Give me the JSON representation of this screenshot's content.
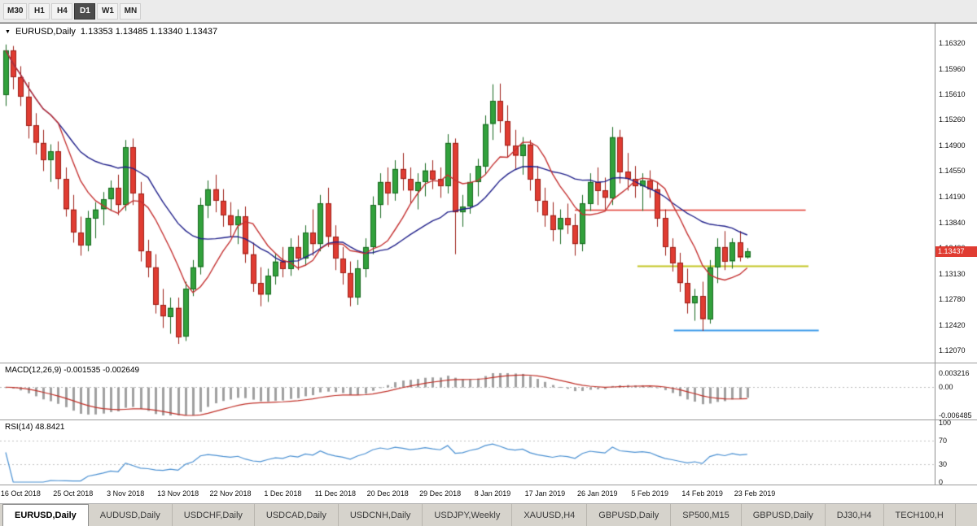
{
  "colors": {
    "bull": "#32a13c",
    "bull_border": "#17691f",
    "bear": "#e03c32",
    "bear_border": "#9c1f17",
    "ma_fast": "#c43131",
    "ma_slow": "#20208a",
    "level_red": "#e03c32",
    "level_yellow": "#c3c623",
    "level_blue": "#3d9be9",
    "macd_hist": "#a0a0a0",
    "macd_signal": "#c03028",
    "rsi_line": "#4a90d2",
    "badge_bg": "#e03c32"
  },
  "icons": {
    "symbol_dropdown": "▼"
  },
  "toolbar": {
    "timeframes": [
      {
        "label": "M30",
        "active": false
      },
      {
        "label": "H1",
        "active": false
      },
      {
        "label": "H4",
        "active": false
      },
      {
        "label": "D1",
        "active": true
      },
      {
        "label": "W1",
        "active": false
      },
      {
        "label": "MN",
        "active": false
      }
    ]
  },
  "legend": {
    "symbol": "EURUSD,Daily",
    "ohlc": "1.13353 1.13485 1.13340 1.13437"
  },
  "price_badge": "1.13437",
  "price_scale": [
    "1.16320",
    "1.15960",
    "1.15610",
    "1.15260",
    "1.14900",
    "1.14550",
    "1.14190",
    "1.13840",
    "1.13490",
    "1.13130",
    "1.12780",
    "1.12420",
    "1.12070"
  ],
  "macd": {
    "label": "MACD(12,26,9) -0.001535 -0.002649",
    "scale": [
      {
        "label": "0.003216",
        "v": 0.003216
      },
      {
        "label": "0.00",
        "v": 0
      },
      {
        "label": "-0.006485",
        "v": -0.006485
      }
    ]
  },
  "rsi": {
    "label": "RSI(14) 48.8421",
    "scale": [
      {
        "label": "100",
        "v": 100
      },
      {
        "label": "70",
        "v": 70
      },
      {
        "label": "30",
        "v": 30
      },
      {
        "label": "0",
        "v": 0
      }
    ]
  },
  "tabs": [
    {
      "label": "EURUSD,Daily",
      "active": true
    },
    {
      "label": "AUDUSD,Daily",
      "active": false
    },
    {
      "label": "USDCHF,Daily",
      "active": false
    },
    {
      "label": "USDCAD,Daily",
      "active": false
    },
    {
      "label": "USDCNH,Daily",
      "active": false
    },
    {
      "label": "USDJPY,Weekly",
      "active": false
    },
    {
      "label": "XAUUSD,H4",
      "active": false
    },
    {
      "label": "GBPUSD,Daily",
      "active": false
    },
    {
      "label": "SP500,M15",
      "active": false
    },
    {
      "label": "GBPUSD,Daily",
      "active": false
    },
    {
      "label": "DJ30,H4",
      "active": false
    },
    {
      "label": "TECH100,H",
      "active": false
    }
  ],
  "chart_data": {
    "type": "candlestick",
    "symbol": "EURUSD",
    "timeframe": "Daily",
    "last_ohlc": [
      1.13353,
      1.13485,
      1.1334,
      1.13437
    ],
    "badge_price": 1.13437,
    "price_max": 1.1632,
    "price_min": 1.1207,
    "price_ticks": [
      1.1632,
      1.1596,
      1.1561,
      1.1526,
      1.149,
      1.1455,
      1.1419,
      1.1384,
      1.1349,
      1.1313,
      1.1278,
      1.1242,
      1.1207
    ],
    "x_axis": [
      {
        "label": "16 Oct 2018",
        "slot": 2
      },
      {
        "label": "25 Oct 2018",
        "slot": 9
      },
      {
        "label": "3 Nov 2018",
        "slot": 16
      },
      {
        "label": "13 Nov 2018",
        "slot": 23
      },
      {
        "label": "22 Nov 2018",
        "slot": 30
      },
      {
        "label": "1 Dec 2018",
        "slot": 37
      },
      {
        "label": "11 Dec 2018",
        "slot": 44
      },
      {
        "label": "20 Dec 2018",
        "slot": 51
      },
      {
        "label": "29 Dec 2018",
        "slot": 58
      },
      {
        "label": "8 Jan 2019",
        "slot": 65
      },
      {
        "label": "17 Jan 2019",
        "slot": 72
      },
      {
        "label": "26 Jan 2019",
        "slot": 79
      },
      {
        "label": "5 Feb 2019",
        "slot": 86
      },
      {
        "label": "14 Feb 2019",
        "slot": 93
      },
      {
        "label": "23 Feb 2019",
        "slot": 100
      }
    ],
    "ma_fast_period": 8,
    "ma_slow_period": 20,
    "levels": [
      {
        "name": "resistance-red-line",
        "price": 1.1401,
        "color": "level_red",
        "x1": 0.615,
        "x2": 0.862,
        "width": 1.5
      },
      {
        "name": "support-yellow-line",
        "price": 1.1324,
        "color": "level_yellow",
        "x1": 0.682,
        "x2": 0.865,
        "width": 2
      },
      {
        "name": "support-blue-line",
        "price": 1.1235,
        "color": "level_blue",
        "x1": 0.721,
        "x2": 0.876,
        "width": 2
      }
    ],
    "indicators": {
      "macd": {
        "params": [
          12,
          26,
          9
        ],
        "macd_value": -0.001535,
        "signal_value": -0.002649,
        "range": [
          -0.006485,
          0.003216
        ]
      },
      "rsi": {
        "period": 14,
        "value": 48.8421,
        "guides": [
          70,
          30
        ],
        "range": [
          0,
          100
        ]
      }
    },
    "candles": [
      [
        1.156,
        1.163,
        1.1545,
        1.1622
      ],
      [
        1.1622,
        1.1628,
        1.1568,
        1.1585
      ],
      [
        1.1585,
        1.16,
        1.1545,
        1.1558
      ],
      [
        1.1558,
        1.1578,
        1.15,
        1.1518
      ],
      [
        1.1518,
        1.1535,
        1.1478,
        1.1494
      ],
      [
        1.1494,
        1.1512,
        1.1455,
        1.147
      ],
      [
        1.147,
        1.1492,
        1.144,
        1.1482
      ],
      [
        1.1482,
        1.1496,
        1.143,
        1.1444
      ],
      [
        1.1444,
        1.146,
        1.1392,
        1.1402
      ],
      [
        1.1402,
        1.1422,
        1.1356,
        1.137
      ],
      [
        1.137,
        1.1392,
        1.1338,
        1.1352
      ],
      [
        1.1352,
        1.14,
        1.1344,
        1.139
      ],
      [
        1.139,
        1.1412,
        1.1362,
        1.1402
      ],
      [
        1.1402,
        1.1426,
        1.138,
        1.1416
      ],
      [
        1.1416,
        1.1442,
        1.14,
        1.1432
      ],
      [
        1.1432,
        1.145,
        1.1394,
        1.1408
      ],
      [
        1.1408,
        1.1498,
        1.14,
        1.1488
      ],
      [
        1.1488,
        1.15,
        1.1408,
        1.1424
      ],
      [
        1.1424,
        1.144,
        1.133,
        1.1344
      ],
      [
        1.1344,
        1.136,
        1.1308,
        1.1322
      ],
      [
        1.1322,
        1.134,
        1.1258,
        1.127
      ],
      [
        1.127,
        1.1292,
        1.1238,
        1.1254
      ],
      [
        1.1254,
        1.128,
        1.123,
        1.1266
      ],
      [
        1.1266,
        1.128,
        1.1216,
        1.1226
      ],
      [
        1.1226,
        1.1302,
        1.122,
        1.1292
      ],
      [
        1.1292,
        1.1332,
        1.1282,
        1.1322
      ],
      [
        1.1322,
        1.1418,
        1.1312,
        1.1408
      ],
      [
        1.1408,
        1.1442,
        1.139,
        1.143
      ],
      [
        1.143,
        1.145,
        1.1398,
        1.1414
      ],
      [
        1.1414,
        1.143,
        1.1378,
        1.1394
      ],
      [
        1.1394,
        1.1412,
        1.1364,
        1.138
      ],
      [
        1.138,
        1.1402,
        1.1354,
        1.1392
      ],
      [
        1.1392,
        1.1406,
        1.1328,
        1.134
      ],
      [
        1.134,
        1.1356,
        1.1288,
        1.13
      ],
      [
        1.13,
        1.1322,
        1.1268,
        1.1284
      ],
      [
        1.1284,
        1.132,
        1.1274,
        1.131
      ],
      [
        1.131,
        1.1342,
        1.1298,
        1.133
      ],
      [
        1.133,
        1.135,
        1.1308,
        1.132
      ],
      [
        1.132,
        1.1362,
        1.131,
        1.135
      ],
      [
        1.135,
        1.1366,
        1.1318,
        1.1334
      ],
      [
        1.1334,
        1.138,
        1.1324,
        1.137
      ],
      [
        1.137,
        1.1402,
        1.1338,
        1.1354
      ],
      [
        1.1354,
        1.1422,
        1.1344,
        1.141
      ],
      [
        1.141,
        1.1432,
        1.135,
        1.1364
      ],
      [
        1.1364,
        1.138,
        1.1318,
        1.1334
      ],
      [
        1.1334,
        1.135,
        1.1298,
        1.1314
      ],
      [
        1.1314,
        1.133,
        1.1268,
        1.128
      ],
      [
        1.128,
        1.1332,
        1.127,
        1.132
      ],
      [
        1.132,
        1.1362,
        1.1308,
        1.135
      ],
      [
        1.135,
        1.142,
        1.134,
        1.1408
      ],
      [
        1.1408,
        1.1452,
        1.139,
        1.144
      ],
      [
        1.144,
        1.146,
        1.1408,
        1.1424
      ],
      [
        1.1424,
        1.147,
        1.1414,
        1.1458
      ],
      [
        1.1458,
        1.148,
        1.1428,
        1.1444
      ],
      [
        1.1444,
        1.146,
        1.141,
        1.1428
      ],
      [
        1.1428,
        1.1452,
        1.1402,
        1.144
      ],
      [
        1.144,
        1.1466,
        1.142,
        1.1456
      ],
      [
        1.1456,
        1.147,
        1.143,
        1.1444
      ],
      [
        1.1444,
        1.146,
        1.1418,
        1.1434
      ],
      [
        1.1434,
        1.1506,
        1.1424,
        1.1494
      ],
      [
        1.1494,
        1.15,
        1.134,
        1.1398
      ],
      [
        1.1398,
        1.1422,
        1.1378,
        1.1406
      ],
      [
        1.1406,
        1.1452,
        1.1396,
        1.144
      ],
      [
        1.144,
        1.1472,
        1.142,
        1.1462
      ],
      [
        1.1462,
        1.1532,
        1.145,
        1.152
      ],
      [
        1.152,
        1.1575,
        1.1498,
        1.1552
      ],
      [
        1.1552,
        1.1576,
        1.1508,
        1.1524
      ],
      [
        1.1524,
        1.1546,
        1.1474,
        1.149
      ],
      [
        1.149,
        1.1512,
        1.1458,
        1.1476
      ],
      [
        1.1476,
        1.1502,
        1.145,
        1.1492
      ],
      [
        1.1492,
        1.1498,
        1.1428,
        1.1444
      ],
      [
        1.1444,
        1.1462,
        1.1398,
        1.1414
      ],
      [
        1.1414,
        1.1432,
        1.1378,
        1.1394
      ],
      [
        1.1394,
        1.1412,
        1.1358,
        1.1374
      ],
      [
        1.1374,
        1.1402,
        1.1354,
        1.139
      ],
      [
        1.139,
        1.141,
        1.1368,
        1.138
      ],
      [
        1.138,
        1.1396,
        1.1338,
        1.1354
      ],
      [
        1.1354,
        1.1422,
        1.1344,
        1.141
      ],
      [
        1.141,
        1.1452,
        1.14,
        1.144
      ],
      [
        1.144,
        1.146,
        1.1408,
        1.1428
      ],
      [
        1.1428,
        1.1446,
        1.1402,
        1.1418
      ],
      [
        1.1418,
        1.1516,
        1.1408,
        1.1502
      ],
      [
        1.1502,
        1.1512,
        1.1438,
        1.1454
      ],
      [
        1.1454,
        1.148,
        1.1428,
        1.1444
      ],
      [
        1.1444,
        1.1462,
        1.1418,
        1.1434
      ],
      [
        1.1434,
        1.1452,
        1.14,
        1.1442
      ],
      [
        1.1442,
        1.1456,
        1.1418,
        1.143
      ],
      [
        1.143,
        1.144,
        1.1378,
        1.139
      ],
      [
        1.139,
        1.1402,
        1.1338,
        1.135
      ],
      [
        1.135,
        1.1362,
        1.1316,
        1.1328
      ],
      [
        1.1328,
        1.1342,
        1.1288,
        1.13
      ],
      [
        1.13,
        1.132,
        1.1258,
        1.1272
      ],
      [
        1.1272,
        1.1292,
        1.1248,
        1.1282
      ],
      [
        1.1282,
        1.1302,
        1.1234,
        1.125
      ],
      [
        1.125,
        1.1332,
        1.1244,
        1.1322
      ],
      [
        1.1322,
        1.1362,
        1.13,
        1.135
      ],
      [
        1.135,
        1.1372,
        1.1318,
        1.133
      ],
      [
        1.133,
        1.1362,
        1.132,
        1.1356
      ],
      [
        1.1356,
        1.1372,
        1.133,
        1.13353
      ],
      [
        1.13353,
        1.13485,
        1.1334,
        1.13437
      ]
    ]
  }
}
